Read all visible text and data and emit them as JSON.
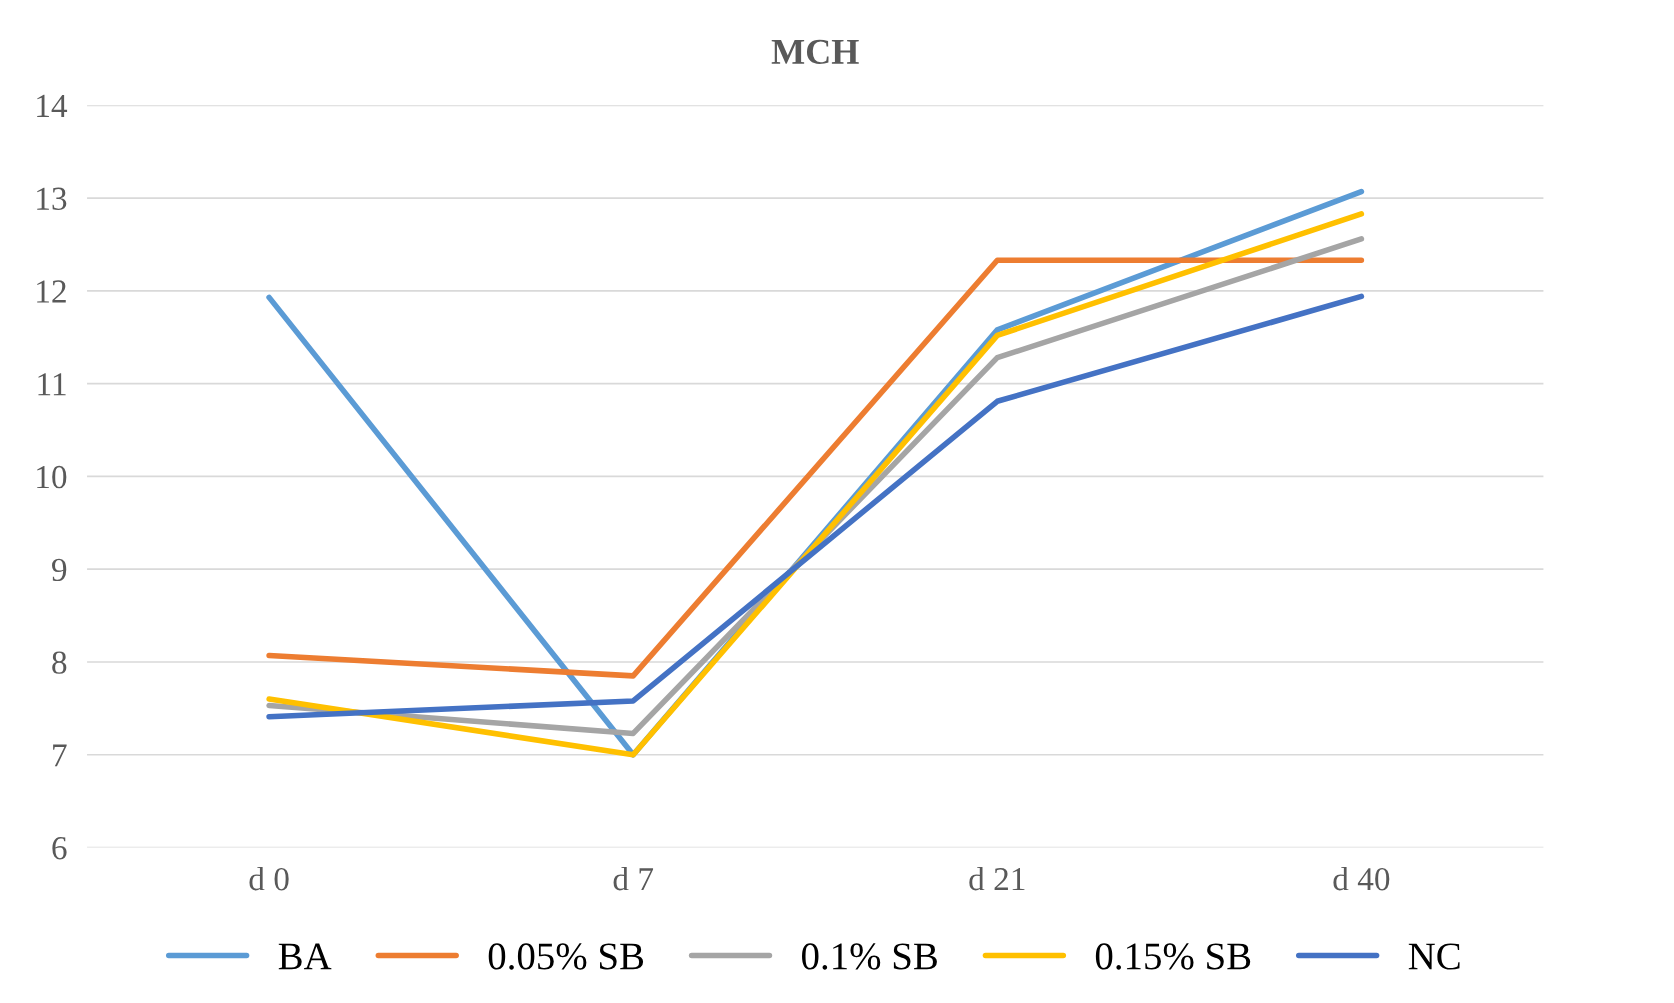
{
  "chart_data": {
    "type": "line",
    "title": "MCH",
    "categories": [
      "d 0",
      "d 7",
      "d 21",
      "d 40"
    ],
    "series": [
      {
        "name": "BA",
        "color": "#5b9bd5",
        "values": [
          11.93,
          7.0,
          11.58,
          13.07
        ]
      },
      {
        "name": "0.05% SB",
        "color": "#ed7d31",
        "values": [
          8.07,
          7.85,
          12.33,
          12.33
        ]
      },
      {
        "name": "0.1% SB",
        "color": "#a5a5a5",
        "values": [
          7.53,
          7.23,
          11.28,
          12.56
        ]
      },
      {
        "name": "0.15% SB",
        "color": "#ffc000",
        "values": [
          7.6,
          7.0,
          11.52,
          12.83
        ]
      },
      {
        "name": "NC",
        "color": "#4472c4",
        "values": [
          7.41,
          7.58,
          10.81,
          11.94
        ]
      }
    ],
    "ylim": [
      6,
      14
    ],
    "yticks": [
      6,
      7,
      8,
      9,
      10,
      11,
      12,
      13,
      14
    ],
    "grid": "y",
    "legend": "bottom",
    "marker": "none",
    "line_style": "solid"
  }
}
